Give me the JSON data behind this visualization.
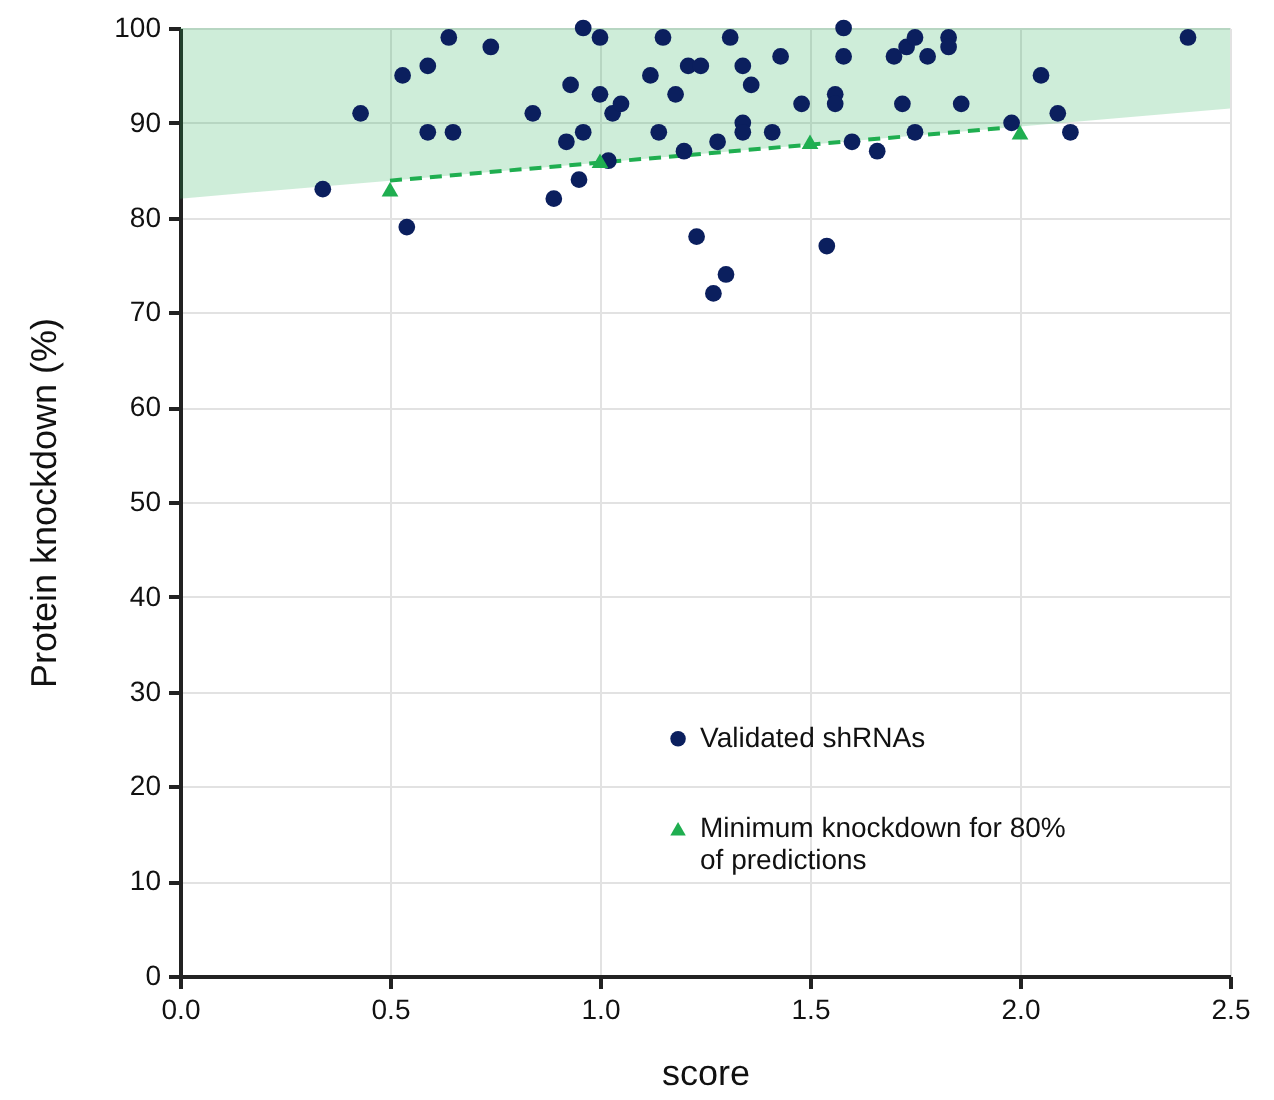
{
  "chart_data": {
    "type": "scatter",
    "xlabel": "score",
    "ylabel": "Protein knockdown (%)",
    "xlim": [
      0,
      2.5
    ],
    "ylim": [
      0,
      100
    ],
    "xticks": [
      {
        "value": 0,
        "label": "0.0"
      },
      0.5,
      {
        "value": 1,
        "label": "1.0"
      },
      1.5,
      {
        "value": 2,
        "label": "2.0"
      },
      2.5
    ],
    "yticks": [
      0,
      10,
      20,
      30,
      40,
      50,
      60,
      70,
      80,
      90,
      100
    ],
    "grid": true,
    "legend": "bottom",
    "series": [
      {
        "type": "line",
        "x": [
          0,
          0.5,
          2.0,
          2.5
        ],
        "values": [
          null,
          83.9,
          89.6,
          null
        ],
        "lower": [
          82.0,
          83.9,
          89.6,
          91.5
        ],
        "upper": [
          100,
          100,
          100,
          100
        ],
        "color": "#1fae50",
        "line_style": "dashed",
        "marker": "none"
      },
      {
        "name": "Validated shRNAs",
        "color": "#0b1f5e",
        "marker": "circle",
        "x": [
          0.34,
          0.43,
          0.53,
          0.54,
          0.59,
          0.59,
          0.64,
          0.65,
          0.74,
          0.84,
          0.89,
          0.93,
          0.96,
          1.0,
          1.0,
          1.03,
          1.05,
          0.92,
          0.96,
          1.02,
          0.95,
          1.15,
          1.12,
          1.21,
          1.24,
          1.18,
          1.14,
          1.2,
          1.28,
          1.23,
          1.3,
          1.27,
          1.31,
          1.34,
          1.36,
          1.34,
          1.34,
          1.41,
          1.43,
          1.48,
          1.58,
          1.58,
          1.56,
          1.56,
          1.6,
          1.66,
          1.54,
          1.7,
          1.73,
          1.75,
          1.78,
          1.72,
          1.75,
          1.83,
          1.83,
          1.86,
          1.98,
          2.05,
          2.09,
          2.12,
          2.4
        ],
        "values": [
          83,
          91,
          95,
          79,
          96,
          89,
          99,
          89,
          98,
          91,
          82,
          94,
          100,
          99,
          93,
          91,
          92,
          88,
          89,
          86,
          84,
          99,
          95,
          96,
          96,
          93,
          89,
          87,
          88,
          78,
          74,
          72,
          99,
          96,
          94,
          90,
          89,
          89,
          97,
          92,
          100,
          97,
          93,
          92,
          88,
          87,
          77,
          97,
          98,
          99,
          97,
          92,
          89,
          99,
          98,
          92,
          90,
          95,
          91,
          89,
          99
        ]
      },
      {
        "name": "Minimum knockdown for 80% of predictions",
        "color": "#1fae50",
        "marker": "triangle",
        "x": [
          0.5,
          1.0,
          1.5,
          2.0
        ],
        "values": [
          83,
          86,
          88,
          89
        ]
      }
    ]
  }
}
